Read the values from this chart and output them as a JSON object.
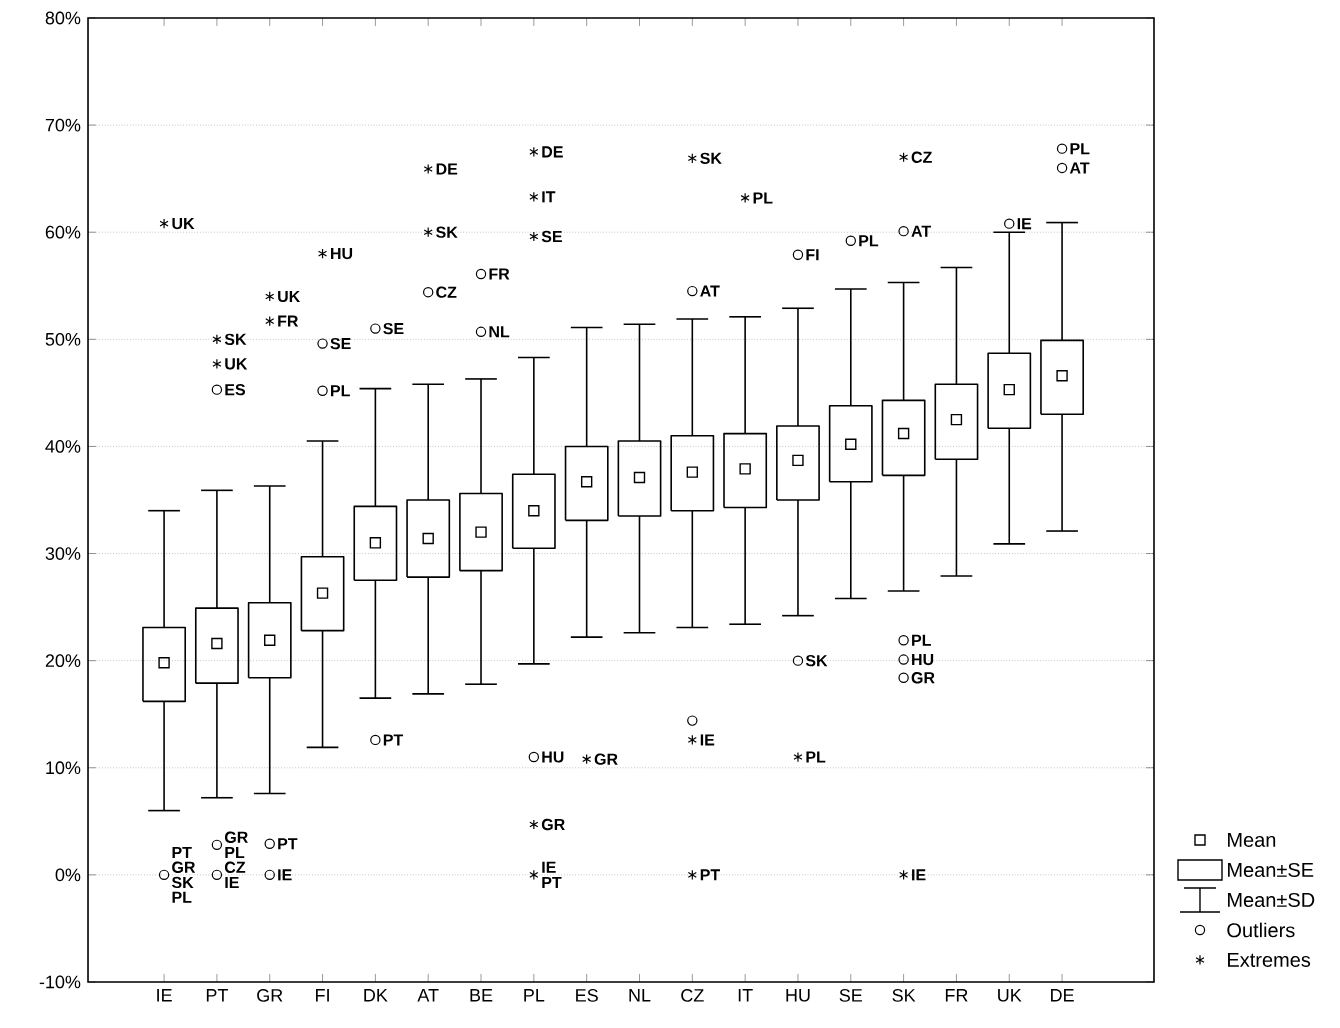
{
  "chart_data": {
    "type": "box",
    "categories": [
      "IE",
      "PT",
      "GR",
      "FI",
      "DK",
      "AT",
      "BE",
      "PL",
      "ES",
      "NL",
      "CZ",
      "IT",
      "HU",
      "SE",
      "SK",
      "FR",
      "UK",
      "DE"
    ],
    "boxes": [
      {
        "low": 6.0,
        "q1": 16.2,
        "median": 19.8,
        "q3": 23.1,
        "high": 34.0
      },
      {
        "low": 7.2,
        "q1": 17.9,
        "median": 21.6,
        "q3": 24.9,
        "high": 35.9
      },
      {
        "low": 7.6,
        "q1": 18.4,
        "median": 21.9,
        "q3": 25.4,
        "high": 36.3
      },
      {
        "low": 11.9,
        "q1": 22.8,
        "median": 26.3,
        "q3": 29.7,
        "high": 40.5
      },
      {
        "low": 16.5,
        "q1": 27.5,
        "median": 31.0,
        "q3": 34.4,
        "high": 45.4
      },
      {
        "low": 16.9,
        "q1": 27.8,
        "median": 31.4,
        "q3": 35.0,
        "high": 45.8
      },
      {
        "low": 17.8,
        "q1": 28.4,
        "median": 32.0,
        "q3": 35.6,
        "high": 46.3
      },
      {
        "low": 19.7,
        "q1": 30.5,
        "median": 34.0,
        "q3": 37.4,
        "high": 48.3
      },
      {
        "low": 22.2,
        "q1": 33.1,
        "median": 36.7,
        "q3": 40.0,
        "high": 51.1
      },
      {
        "low": 22.6,
        "q1": 33.5,
        "median": 37.1,
        "q3": 40.5,
        "high": 51.4
      },
      {
        "low": 23.1,
        "q1": 34.0,
        "median": 37.6,
        "q3": 41.0,
        "high": 51.9
      },
      {
        "low": 23.4,
        "q1": 34.3,
        "median": 37.9,
        "q3": 41.2,
        "high": 52.1
      },
      {
        "low": 24.2,
        "q1": 35.0,
        "median": 38.7,
        "q3": 41.9,
        "high": 52.9
      },
      {
        "low": 25.8,
        "q1": 36.7,
        "median": 40.2,
        "q3": 43.8,
        "high": 54.7
      },
      {
        "low": 26.5,
        "q1": 37.3,
        "median": 41.2,
        "q3": 44.3,
        "high": 55.3
      },
      {
        "low": 27.9,
        "q1": 38.8,
        "median": 42.5,
        "q3": 45.8,
        "high": 56.7
      },
      {
        "low": 30.9,
        "q1": 41.7,
        "median": 45.3,
        "q3": 48.7,
        "high": 60.0
      },
      {
        "low": 32.1,
        "q1": 43.0,
        "median": 46.6,
        "q3": 49.9,
        "high": 60.9
      }
    ],
    "color": "#000000",
    "series": [
      {
        "type": "scatter",
        "name": "Outliers",
        "marker": "circle",
        "color": "#000000",
        "x": [
          "IE",
          "PT",
          "PT",
          "PT",
          "GR",
          "GR",
          "FI",
          "FI",
          "DK",
          "DK",
          "AT",
          "BE",
          "BE",
          "PL",
          "CZ",
          "CZ",
          "HU",
          "HU",
          "SE",
          "SK",
          "SK",
          "SK",
          "SK",
          "UK",
          "DE",
          "DE"
        ],
        "values": [
          0,
          45.3,
          2.8,
          0,
          2.9,
          0,
          49.6,
          45.2,
          51.0,
          12.6,
          54.4,
          56.1,
          50.7,
          11.0,
          54.5,
          14.4,
          57.9,
          20.0,
          59.2,
          60.1,
          21.9,
          20.1,
          18.4,
          60.8,
          67.8,
          66.0
        ]
      },
      {
        "type": "scatter",
        "name": "Extremes",
        "marker": "cross",
        "color": "#000000",
        "x": [
          "IE",
          "PT",
          "PT",
          "GR",
          "GR",
          "FI",
          "AT",
          "AT",
          "PL",
          "PL",
          "PL",
          "PL",
          "PL",
          "ES",
          "CZ",
          "CZ",
          "CZ",
          "IT",
          "HU",
          "SK",
          "SK"
        ],
        "values": [
          60.8,
          50.0,
          47.7,
          54.0,
          51.7,
          58.0,
          65.9,
          60.0,
          67.5,
          63.3,
          59.6,
          4.7,
          0,
          10.8,
          66.9,
          12.6,
          0,
          63.2,
          11.0,
          67.0,
          0
        ]
      }
    ],
    "ylim": [
      -10,
      80
    ],
    "yticks": [
      {
        "value": -10,
        "label": "-10%"
      },
      {
        "value": 0,
        "label": "0%"
      },
      {
        "value": 10,
        "label": "10%"
      },
      {
        "value": 20,
        "label": "20%"
      },
      {
        "value": 30,
        "label": "30%"
      },
      {
        "value": 40,
        "label": "40%"
      },
      {
        "value": 50,
        "label": "50%"
      },
      {
        "value": 60,
        "label": "60%"
      },
      {
        "value": 70,
        "label": "70%"
      },
      {
        "value": 80,
        "label": "80%"
      }
    ],
    "grid": "y",
    "legend": "bottom right",
    "annotations": [
      "Mean",
      "Mean±SE",
      "Mean±SD",
      {
        "text": "UK",
        "x": "IE",
        "y": 60.8
      },
      {
        "text": "PT",
        "x": "IE",
        "y": 0
      },
      {
        "text": "GR",
        "x": "IE",
        "y": 0
      },
      {
        "text": "SK",
        "x": "IE",
        "y": 0
      },
      {
        "text": "PL",
        "x": "IE",
        "y": 0
      },
      {
        "text": "SK",
        "x": "PT",
        "y": 50.0
      },
      {
        "text": "UK",
        "x": "PT",
        "y": 47.7
      },
      {
        "text": "ES",
        "x": "PT",
        "y": 45.3
      },
      {
        "text": "GR",
        "x": "PT",
        "y": 2.8
      },
      {
        "text": "PL",
        "x": "PT",
        "y": 2.8
      },
      {
        "text": "CZ",
        "x": "PT",
        "y": 0
      },
      {
        "text": "IE",
        "x": "PT",
        "y": 0
      },
      {
        "text": "UK",
        "x": "GR",
        "y": 54.0
      },
      {
        "text": "FR",
        "x": "GR",
        "y": 51.7
      },
      {
        "text": "PT",
        "x": "GR",
        "y": 2.9
      },
      {
        "text": "IE",
        "x": "GR",
        "y": 0
      },
      {
        "text": "HU",
        "x": "FI",
        "y": 58.0
      },
      {
        "text": "SE",
        "x": "FI",
        "y": 49.6
      },
      {
        "text": "PL",
        "x": "FI",
        "y": 45.2
      },
      {
        "text": "SE",
        "x": "DK",
        "y": 51.0
      },
      {
        "text": "PT",
        "x": "DK",
        "y": 12.6
      },
      {
        "text": "DE",
        "x": "AT",
        "y": 65.9
      },
      {
        "text": "SK",
        "x": "AT",
        "y": 60.0
      },
      {
        "text": "CZ",
        "x": "AT",
        "y": 54.4
      },
      {
        "text": "FR",
        "x": "BE",
        "y": 56.1
      },
      {
        "text": "NL",
        "x": "BE",
        "y": 50.7
      },
      {
        "text": "DE",
        "x": "PL",
        "y": 67.5
      },
      {
        "text": "IT",
        "x": "PL",
        "y": 63.3
      },
      {
        "text": "SE",
        "x": "PL",
        "y": 59.6
      },
      {
        "text": "HU",
        "x": "PL",
        "y": 11.0
      },
      {
        "text": "GR",
        "x": "PL",
        "y": 4.7
      },
      {
        "text": "IE",
        "x": "PL",
        "y": 0
      },
      {
        "text": "PT",
        "x": "PL",
        "y": 0
      },
      {
        "text": "GR",
        "x": "ES",
        "y": 10.8
      },
      {
        "text": "SK",
        "x": "CZ",
        "y": 66.9
      },
      {
        "text": "AT",
        "x": "CZ",
        "y": 54.5
      },
      {
        "text": "IE",
        "x": "CZ",
        "y": 12.6
      },
      {
        "text": "PT",
        "x": "CZ",
        "y": 0
      },
      {
        "text": "PL",
        "x": "IT",
        "y": 63.2
      },
      {
        "text": "FI",
        "x": "HU",
        "y": 57.9
      },
      {
        "text": "SK",
        "x": "HU",
        "y": 20.0
      },
      {
        "text": "PL",
        "x": "HU",
        "y": 11.0
      },
      {
        "text": "PL",
        "x": "SE",
        "y": 59.2
      },
      {
        "text": "CZ",
        "x": "SK",
        "y": 67.0
      },
      {
        "text": "AT",
        "x": "SK",
        "y": 60.1
      },
      {
        "text": "PL",
        "x": "SK",
        "y": 21.9
      },
      {
        "text": "HU",
        "x": "SK",
        "y": 20.1
      },
      {
        "text": "GR",
        "x": "SK",
        "y": 18.4
      },
      {
        "text": "IE",
        "x": "SK",
        "y": 0
      },
      {
        "text": "IE",
        "x": "UK",
        "y": 60.8
      },
      {
        "text": "PL",
        "x": "DE",
        "y": 67.8
      },
      {
        "text": "AT",
        "x": "DE",
        "y": 66.0
      }
    ]
  }
}
